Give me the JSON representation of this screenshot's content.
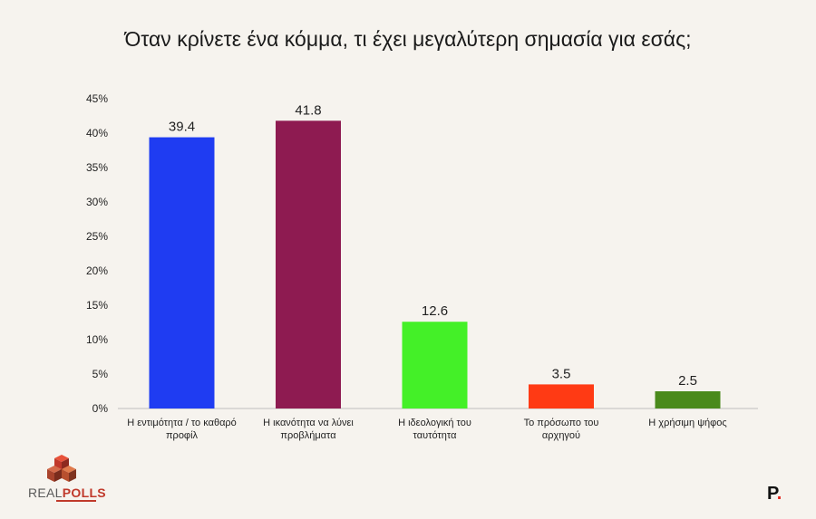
{
  "title": "Όταν κρίνετε ένα κόμμα, τι έχει μεγαλύτερη σημασία για εσάς;",
  "chart_data": {
    "type": "bar",
    "title": "Όταν κρίνετε ένα κόμμα, τι έχει μεγαλύτερη σημασία για εσάς;",
    "categories": [
      [
        "Η εντιμότητα / το καθαρό",
        "προφίλ"
      ],
      [
        "Η ικανότητα να λύνει",
        "προβλήματα"
      ],
      [
        "Η ιδεολογική του",
        "ταυτότητα"
      ],
      [
        "Το πρόσωπο του",
        "αρχηγού"
      ],
      [
        "Η χρήσιμη ψήφος"
      ]
    ],
    "values": [
      39.4,
      41.8,
      12.6,
      3.5,
      2.5
    ],
    "value_labels": [
      "39.4",
      "41.8",
      "12.6",
      "3.5",
      "2.5"
    ],
    "colors": [
      "#1f3cf2",
      "#8e1b51",
      "#44f028",
      "#ff3a14",
      "#4a8a1c"
    ],
    "ylim": [
      0,
      45
    ],
    "yticks": [
      0,
      5,
      10,
      15,
      20,
      25,
      30,
      35,
      40,
      45
    ],
    "ytick_labels": [
      "0%",
      "5%",
      "10%",
      "15%",
      "20%",
      "25%",
      "30%",
      "35%",
      "40%",
      "45%"
    ],
    "grid": false,
    "xlabel": "",
    "ylabel": ""
  },
  "logos": {
    "left_brand_first": "REAL",
    "left_brand_second": "POLLS",
    "right_brand": "P",
    "right_brand_dot": "."
  }
}
